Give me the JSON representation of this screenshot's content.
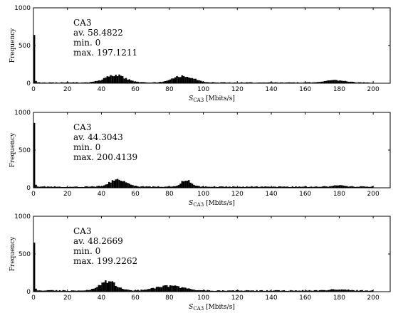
{
  "chart_data": [
    {
      "type": "bar",
      "ylabel": "Frequency",
      "xlabel_symbol": "S",
      "xlabel_sub": "CA3",
      "xlabel_unit": "[Mbits/s]",
      "xlim": [
        0,
        210
      ],
      "ylim": [
        0,
        1000
      ],
      "xticks": [
        0,
        20,
        40,
        60,
        80,
        100,
        120,
        140,
        160,
        180,
        200
      ],
      "yticks": [
        0,
        500,
        1000
      ],
      "annotation": [
        "CA3",
        "av.  58.4822",
        "min.  0",
        "max.  197.1211"
      ],
      "bin_width": 1,
      "peak_bins": [
        [
          0,
          640
        ],
        [
          1,
          30
        ]
      ],
      "humps": [
        {
          "center": 48,
          "width": 6,
          "height": 95
        },
        {
          "center": 88,
          "width": 6,
          "height": 85
        },
        {
          "center": 178,
          "width": 6,
          "height": 30
        }
      ],
      "baseline": 10
    },
    {
      "type": "bar",
      "ylabel": "Frequency",
      "xlabel_symbol": "S",
      "xlabel_sub": "CA3",
      "xlabel_unit": "[Mbits/s]",
      "xlim": [
        0,
        210
      ],
      "ylim": [
        0,
        1000
      ],
      "xticks": [
        0,
        20,
        40,
        60,
        80,
        100,
        120,
        140,
        160,
        180,
        200
      ],
      "yticks": [
        0,
        500,
        1000
      ],
      "annotation": [
        "CA3",
        "av.  44.3043",
        "min.  0",
        "max.  200.4139"
      ],
      "bin_width": 1,
      "peak_bins": [
        [
          0,
          860
        ],
        [
          1,
          40
        ]
      ],
      "humps": [
        {
          "center": 50,
          "width": 5,
          "height": 90
        },
        {
          "center": 90,
          "width": 3,
          "height": 90
        },
        {
          "center": 180,
          "width": 4,
          "height": 15
        }
      ],
      "baseline": 15
    },
    {
      "type": "bar",
      "ylabel": "Frequency",
      "xlabel_symbol": "S",
      "xlabel_sub": "CA3",
      "xlabel_unit": "[Mbits/s]",
      "xlim": [
        0,
        210
      ],
      "ylim": [
        0,
        1000
      ],
      "xticks": [
        0,
        20,
        40,
        60,
        80,
        100,
        120,
        140,
        160,
        180,
        200
      ],
      "yticks": [
        0,
        500,
        1000
      ],
      "annotation": [
        "CA3",
        "av.  48.2669",
        "min.  0",
        "max.  199.2262"
      ],
      "bin_width": 1,
      "peak_bins": [
        [
          0,
          650
        ],
        [
          1,
          40
        ]
      ],
      "humps": [
        {
          "center": 44,
          "width": 5,
          "height": 120
        },
        {
          "center": 80,
          "width": 8,
          "height": 65
        },
        {
          "center": 180,
          "width": 5,
          "height": 15
        }
      ],
      "baseline": 15
    }
  ]
}
